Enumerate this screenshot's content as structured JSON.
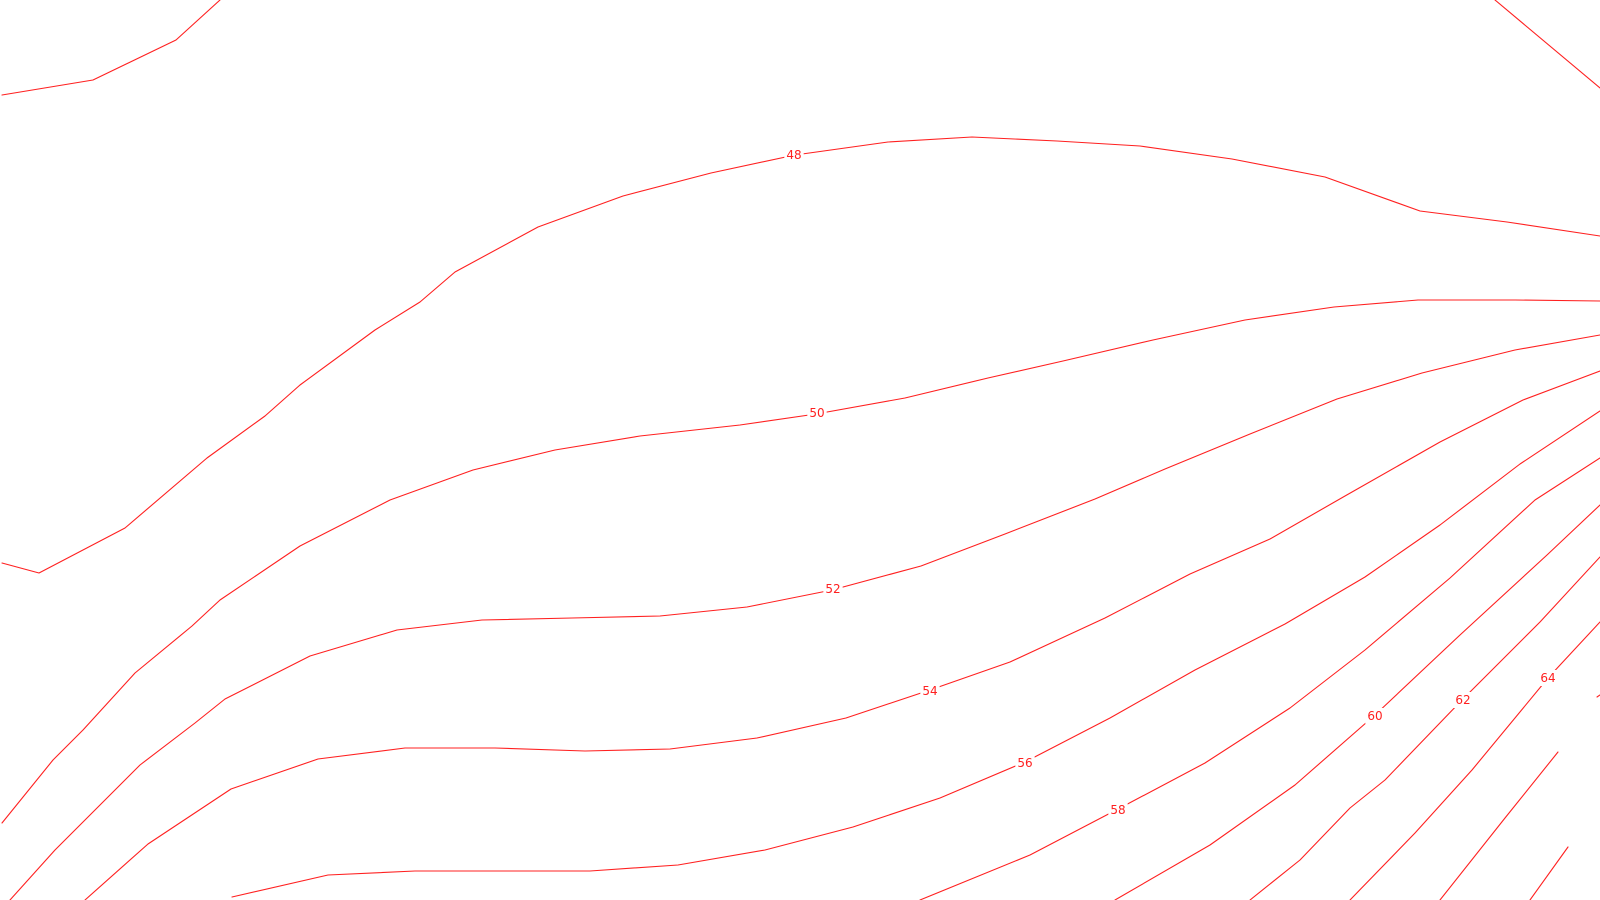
{
  "map": {
    "background_color": "#ffffff",
    "contour_color": "#ff2020",
    "label_color": "#ff2020",
    "contour_labels": [
      {
        "id": "48",
        "text": "48"
      },
      {
        "id": "50",
        "text": "50"
      },
      {
        "id": "52",
        "text": "52"
      },
      {
        "id": "54",
        "text": "54"
      },
      {
        "id": "56",
        "text": "56"
      },
      {
        "id": "58",
        "text": "58"
      },
      {
        "id": "60",
        "text": "60"
      },
      {
        "id": "62",
        "text": "62"
      },
      {
        "id": "64",
        "text": "64"
      }
    ]
  }
}
